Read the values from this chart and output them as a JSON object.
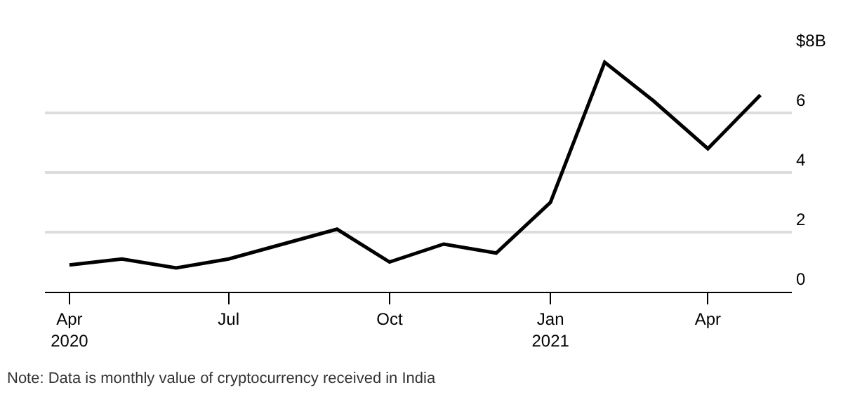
{
  "chart_data": {
    "type": "line",
    "x": [
      "2020-04-01",
      "2020-05-01",
      "2020-06-01",
      "2020-07-01",
      "2020-08-01",
      "2020-09-01",
      "2020-10-01",
      "2020-11-01",
      "2020-12-01",
      "2021-01-01",
      "2021-02-01",
      "2021-03-01",
      "2021-04-01",
      "2021-05-01"
    ],
    "series": [
      {
        "color": "#000000",
        "values": [
          0.9,
          1.1,
          0.8,
          1.1,
          1.6,
          2.1,
          1.0,
          1.6,
          1.3,
          3.0,
          7.7,
          6.4,
          4.8,
          6.6
        ]
      }
    ],
    "xlim": [
      "2020-03-18",
      "2021-05-19"
    ],
    "xticks": [
      {
        "value": "2020-04-01",
        "label": "Apr\n2020"
      },
      {
        "value": "2020-07-01",
        "label": "Jul"
      },
      {
        "value": "2020-10-01",
        "label": "Oct"
      },
      {
        "value": "2021-01-01",
        "label": "Jan\n2021"
      },
      {
        "value": "2021-04-01",
        "label": "Apr"
      }
    ],
    "ylim": [
      0,
      8
    ],
    "yticks": [
      0,
      2,
      4,
      6,
      {
        "value": 8,
        "label": "$8B"
      }
    ],
    "grid": "y",
    "marker": "none",
    "line_style": "solid",
    "annotations": [
      "Note: Data is monthly value of cryptocurrency received in India"
    ]
  }
}
